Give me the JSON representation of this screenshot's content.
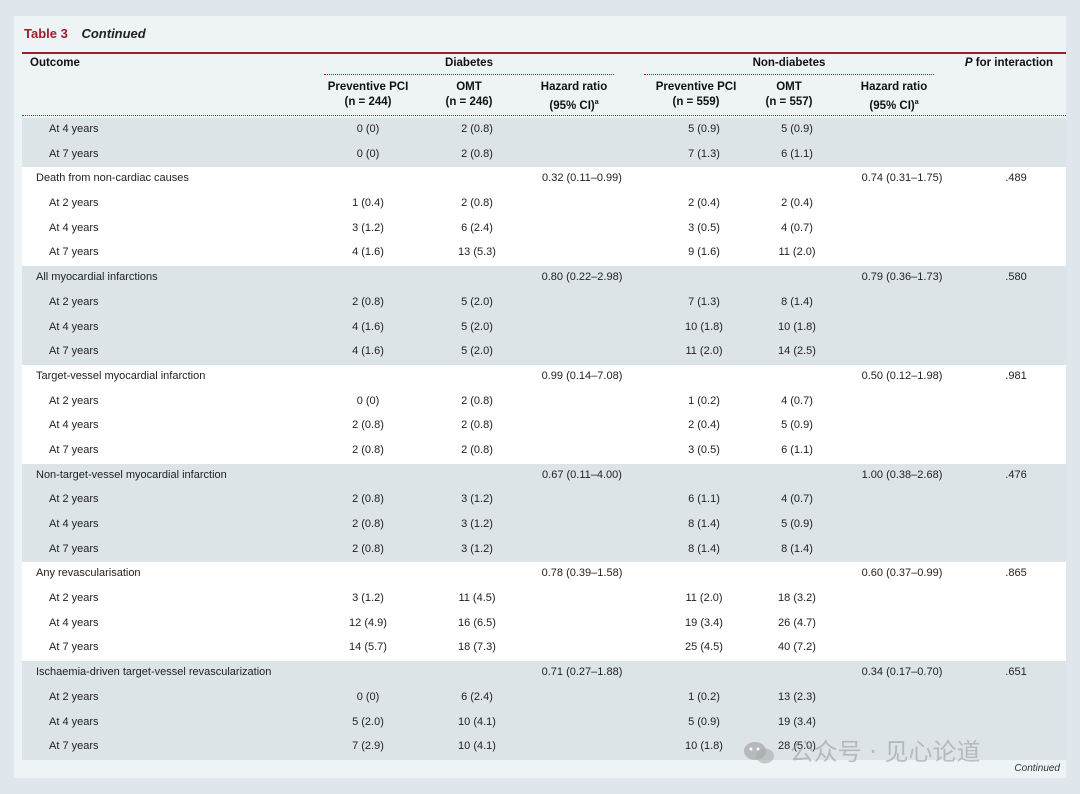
{
  "caption": {
    "label": "Table 3",
    "continued": "Continued"
  },
  "header": {
    "outcome": "Outcome",
    "diabetes": "Diabetes",
    "non_diabetes": "Non-diabetes",
    "p_interaction_p": "P",
    "p_interaction": " for interaction",
    "pci_label": "Preventive PCI",
    "omt_label": "OMT",
    "hr_label": "Hazard ratio",
    "hr_ci": "(95% CI)",
    "hr_sup": "a",
    "d_pci_n": "(n = 244)",
    "d_omt_n": "(n = 246)",
    "n_pci_n": "(n = 559)",
    "n_omt_n": "(n = 557)"
  },
  "groups": [
    {
      "shade": "shaded",
      "rows": [
        [
          "At 4 years",
          "0 (0)",
          "2 (0.8)",
          "",
          "5 (0.9)",
          "5 (0.9)",
          "",
          ""
        ],
        [
          "At 7 years",
          "0 (0)",
          "2 (0.8)",
          "",
          "7 (1.3)",
          "6 (1.1)",
          "",
          ""
        ]
      ]
    },
    {
      "shade": "white",
      "title": [
        "Death from non-cardiac causes",
        "",
        "",
        "0.32 (0.11–0.99)",
        "",
        "",
        "0.74 (0.31–1.75)",
        ".489"
      ],
      "rows": [
        [
          "At 2 years",
          "1 (0.4)",
          "2 (0.8)",
          "",
          "2 (0.4)",
          "2 (0.4)",
          "",
          ""
        ],
        [
          "At 4 years",
          "3 (1.2)",
          "6 (2.4)",
          "",
          "3 (0.5)",
          "4 (0.7)",
          "",
          ""
        ],
        [
          "At 7 years",
          "4 (1.6)",
          "13 (5.3)",
          "",
          "9 (1.6)",
          "11 (2.0)",
          "",
          ""
        ]
      ]
    },
    {
      "shade": "shaded",
      "title": [
        "All myocardial infarctions",
        "",
        "",
        "0.80 (0.22–2.98)",
        "",
        "",
        "0.79 (0.36–1.73)",
        ".580"
      ],
      "rows": [
        [
          "At 2 years",
          "2 (0.8)",
          "5 (2.0)",
          "",
          "7 (1.3)",
          "8 (1.4)",
          "",
          ""
        ],
        [
          "At 4 years",
          "4 (1.6)",
          "5 (2.0)",
          "",
          "10 (1.8)",
          "10 (1.8)",
          "",
          ""
        ],
        [
          "At 7 years",
          "4 (1.6)",
          "5 (2.0)",
          "",
          "11 (2.0)",
          "14 (2.5)",
          "",
          ""
        ]
      ]
    },
    {
      "shade": "white",
      "title": [
        "Target-vessel myocardial infarction",
        "",
        "",
        "0.99 (0.14–7.08)",
        "",
        "",
        "0.50 (0.12–1.98)",
        ".981"
      ],
      "rows": [
        [
          "At 2 years",
          "0 (0)",
          "2 (0.8)",
          "",
          "1 (0.2)",
          "4 (0.7)",
          "",
          ""
        ],
        [
          "At 4 years",
          "2 (0.8)",
          "2 (0.8)",
          "",
          "2 (0.4)",
          "5 (0.9)",
          "",
          ""
        ],
        [
          "At 7 years",
          "2 (0.8)",
          "2 (0.8)",
          "",
          "3 (0.5)",
          "6 (1.1)",
          "",
          ""
        ]
      ]
    },
    {
      "shade": "shaded",
      "title": [
        "Non-target-vessel myocardial infarction",
        "",
        "",
        "0.67 (0.11–4.00)",
        "",
        "",
        "1.00 (0.38–2.68)",
        ".476"
      ],
      "rows": [
        [
          "At 2 years",
          "2 (0.8)",
          "3 (1.2)",
          "",
          "6 (1.1)",
          "4 (0.7)",
          "",
          ""
        ],
        [
          "At 4 years",
          "2 (0.8)",
          "3 (1.2)",
          "",
          "8 (1.4)",
          "5 (0.9)",
          "",
          ""
        ],
        [
          "At 7 years",
          "2 (0.8)",
          "3 (1.2)",
          "",
          "8 (1.4)",
          "8 (1.4)",
          "",
          ""
        ]
      ]
    },
    {
      "shade": "white",
      "title": [
        "Any revascularisation",
        "",
        "",
        "0.78 (0.39–1.58)",
        "",
        "",
        "0.60 (0.37–0.99)",
        ".865"
      ],
      "rows": [
        [
          "At 2 years",
          "3 (1.2)",
          "11 (4.5)",
          "",
          "11 (2.0)",
          "18 (3.2)",
          "",
          ""
        ],
        [
          "At 4 years",
          "12 (4.9)",
          "16 (6.5)",
          "",
          "19 (3.4)",
          "26 (4.7)",
          "",
          ""
        ],
        [
          "At 7 years",
          "14 (5.7)",
          "18 (7.3)",
          "",
          "25 (4.5)",
          "40 (7.2)",
          "",
          ""
        ]
      ]
    },
    {
      "shade": "shaded",
      "title": [
        "Ischaemia-driven target-vessel revascularization",
        "",
        "",
        "0.71 (0.27–1.88)",
        "",
        "",
        "0.34 (0.17–0.70)",
        ".651"
      ],
      "rows": [
        [
          "At 2 years",
          "0 (0)",
          "6 (2.4)",
          "",
          "1 (0.2)",
          "13 (2.3)",
          "",
          ""
        ],
        [
          "At 4 years",
          "5 (2.0)",
          "10 (4.1)",
          "",
          "5 (0.9)",
          "19 (3.4)",
          "",
          ""
        ],
        [
          "At 7 years",
          "7 (2.9)",
          "10 (4.1)",
          "",
          "10 (1.8)",
          "28 (5.0)",
          "",
          ""
        ]
      ]
    }
  ],
  "footer": {
    "continued": "Continued"
  },
  "watermark": {
    "text": "公众号 · 见心论道",
    "icon": "wechat-icon"
  },
  "colors": {
    "accent": "#a01c2c",
    "shaded": "#dde4e8",
    "background": "#eef3f6"
  }
}
